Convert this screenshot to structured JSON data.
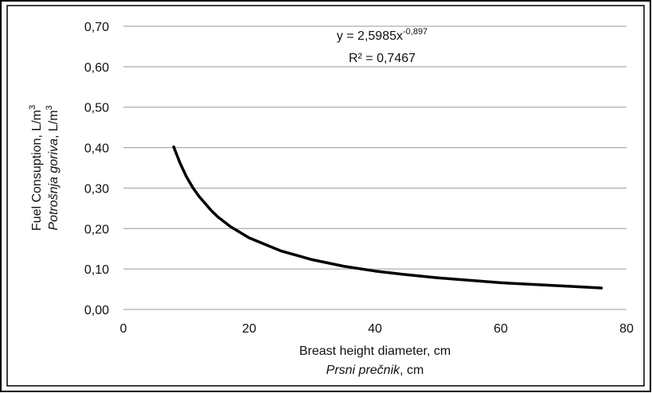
{
  "chart_data": {
    "type": "line",
    "equation": {
      "text": "y = 2,5985x",
      "sup": "-0,897"
    },
    "r2": "R² = 0,7467",
    "ylabel": {
      "line1": {
        "text": "Fuel Consuption, L/m",
        "sup": "3"
      },
      "line2": {
        "italic": "Potrošnja goriva",
        "text": ", L/m",
        "sup": "3"
      }
    },
    "xlabel": {
      "line1": "Breast height diameter, cm",
      "line2": {
        "italic": "Prsni prečnik",
        "text": ", cm"
      }
    },
    "x": [
      8,
      9,
      10,
      11,
      12,
      14,
      15,
      17,
      20,
      25,
      30,
      35,
      40,
      45,
      50,
      60,
      70,
      76
    ],
    "values": [
      0.402,
      0.362,
      0.329,
      0.302,
      0.28,
      0.244,
      0.229,
      0.205,
      0.177,
      0.145,
      0.123,
      0.107,
      0.095,
      0.086,
      0.078,
      0.066,
      0.058,
      0.053
    ],
    "color": "#000000",
    "xlim": [
      0,
      80
    ],
    "xticks": [
      0,
      20,
      40,
      60,
      80
    ],
    "ylim": [
      0,
      0.7
    ],
    "yticks": [
      {
        "value": 0,
        "label": "0,00"
      },
      {
        "value": 0.1,
        "label": "0,10"
      },
      {
        "value": 0.2,
        "label": "0,20"
      },
      {
        "value": 0.3,
        "label": "0,30"
      },
      {
        "value": 0.4,
        "label": "0,40"
      },
      {
        "value": 0.5,
        "label": "0,50"
      },
      {
        "value": 0.6,
        "label": "0,60"
      },
      {
        "value": 0.7,
        "label": "0,70"
      }
    ],
    "grid": true
  }
}
